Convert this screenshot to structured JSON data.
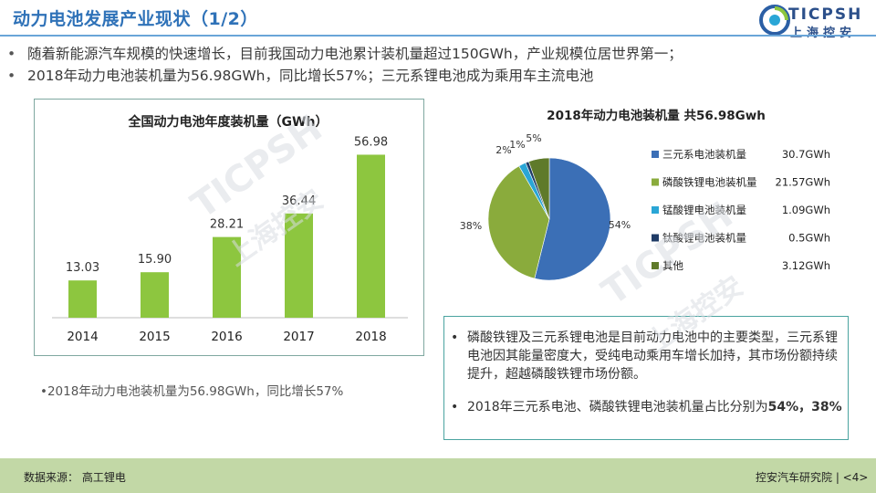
{
  "header": {
    "title": "动力电池发展产业现状（1/2）",
    "logo_en": "TICPSH",
    "logo_cn": "上海控安"
  },
  "bullets": [
    "随着新能源汽车规模的快速增长，目前我国动力电池累计装机量超过150GWh，产业规模位居世界第一；",
    "2018年动力电池装机量为56.98GWh，同比增长57%；三元系锂电池成为乘用车主流电池"
  ],
  "bullet_glyph": "•",
  "left_note": "2018年动力电池装机量为56.98GWh，同比增长57%",
  "right_notes": [
    "磷酸铁锂及三元系锂电池是目前动力电池中的主要类型，三元系锂电池因其能量密度大，受纯电动乘用车增长加持，其市场份额持续提升，超越磷酸铁锂市场份额。",
    "2018年三元系电池、磷酸铁锂电池装机量占比分别为"
  ],
  "right_note_bold": "54%，38%",
  "footer": {
    "source": "数据来源： 高工锂电",
    "right": "控安汽车研究院 | <4>"
  },
  "watermark": {
    "en": "TICPSH",
    "cn": "上海控安"
  },
  "chart_data": [
    {
      "type": "bar",
      "title": "全国动力电池年度装机量（GWh）",
      "categories": [
        "2014",
        "2015",
        "2016",
        "2017",
        "2018"
      ],
      "values": [
        13.03,
        15.9,
        28.21,
        36.44,
        56.98
      ],
      "value_labels": [
        "13.03",
        "15.90",
        "28.21",
        "36.44",
        "56.98"
      ],
      "ylim": [
        0,
        60
      ],
      "color": "#8dc63f",
      "grid": false
    },
    {
      "type": "pie",
      "title": "2018年动力电池装机量   共56.98Gwh",
      "slices": [
        {
          "label": "三元系电池装机量",
          "amount": "30.7GWh",
          "value": 30.7,
          "pct_label": "54%",
          "color": "#3b6fb6"
        },
        {
          "label": "磷酸铁锂电池装机量",
          "amount": "21.57GWh",
          "value": 21.57,
          "pct_label": "38%",
          "color": "#8aab3c"
        },
        {
          "label": "锰酸锂电池装机量",
          "amount": "1.09GWh",
          "value": 1.09,
          "pct_label": "2%",
          "color": "#2aa6d6"
        },
        {
          "label": "钛酸锂电池装机量",
          "amount": "0.5GWh",
          "value": 0.5,
          "pct_label": "1%",
          "color": "#1f3b66"
        },
        {
          "label": "其他",
          "amount": "3.12GWh",
          "value": 3.12,
          "pct_label": "5%",
          "color": "#5f7a2a"
        }
      ],
      "legend": "right"
    }
  ]
}
